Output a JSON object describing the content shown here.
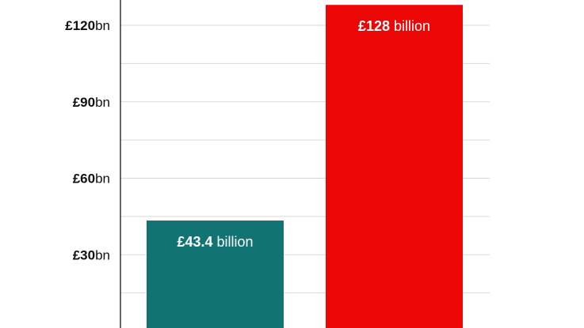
{
  "chart_data": {
    "type": "bar",
    "categories": [
      "",
      ""
    ],
    "values": [
      43.4,
      128
    ],
    "data_labels": [
      {
        "value": "£43.4",
        "unit": " billion"
      },
      {
        "value": "£128",
        "unit": " billion"
      }
    ],
    "colors": [
      "#127373",
      "#ec0606"
    ],
    "ylim": [
      0,
      135
    ],
    "yticks": [
      {
        "value": 30,
        "label": "£30",
        "unit": "bn"
      },
      {
        "value": 60,
        "label": "£60",
        "unit": "bn"
      },
      {
        "value": 90,
        "label": "£90",
        "unit": "bn"
      },
      {
        "value": 120,
        "label": "£120",
        "unit": "bn"
      }
    ],
    "minor_gridlines": [
      15,
      45,
      75,
      105
    ],
    "grid": true,
    "gridline_color": "#d9d9d9",
    "axis_color": "#333333",
    "title": "",
    "xlabel": "",
    "ylabel": ""
  }
}
